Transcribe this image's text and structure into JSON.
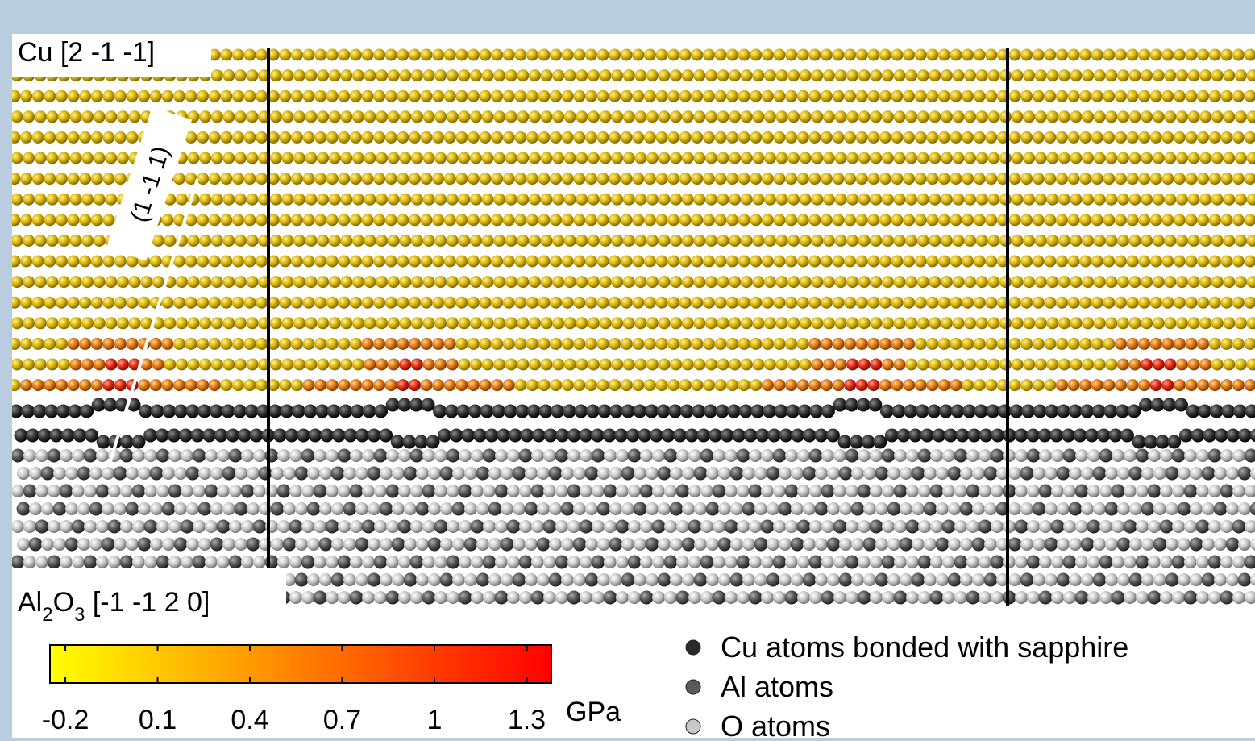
{
  "labels": {
    "cu_direction": "Cu [2 -1 -1]",
    "plane": "(1 -1 1)",
    "substrate": {
      "parts": [
        "Al",
        "2",
        "O",
        "3",
        " [-1 -1 2 0]"
      ]
    }
  },
  "colorbar": {
    "range": [
      -0.25,
      1.38
    ],
    "ticks": [
      -0.2,
      0.1,
      0.4,
      0.7,
      1,
      1.3
    ],
    "unit": "GPa",
    "colors": [
      "#ffff00",
      "#ff0000"
    ]
  },
  "legend": [
    {
      "label": "Cu atoms bonded with sapphire",
      "color": "#2a2a2a"
    },
    {
      "label": "Al atoms",
      "color": "#5a5a5a"
    },
    {
      "label": "O atoms",
      "color": "#c8c8c8"
    }
  ]
}
